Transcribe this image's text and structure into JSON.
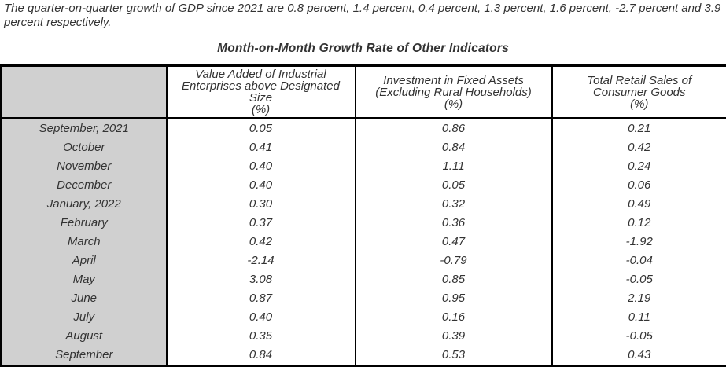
{
  "intro_text": "The quarter-on-quarter growth of GDP since 2021 are 0.8 percent, 1.4 percent, 0.4 percent, 1.3 percent, 1.6 percent, -2.7 percent and 3.9 percent respectively.",
  "table_title": "Month-on-Month Growth Rate of Other Indicators",
  "table": {
    "corner_label": "",
    "columns": [
      {
        "label": "Value Added of Industrial Enterprises above Designated Size (%)",
        "lines": [
          "Value Added of Industrial",
          "Enterprises above Designated",
          "Size",
          "(%)"
        ]
      },
      {
        "label": "Investment in Fixed Assets (Excluding Rural Households) (%)",
        "lines": [
          "Investment in Fixed  Assets",
          "(Excluding Rural Households)",
          "(%)"
        ]
      },
      {
        "label": "Total Retail Sales of Consumer Goods (%)",
        "lines": [
          "Total Retail Sales of",
          "Consumer Goods",
          "(%)"
        ]
      }
    ],
    "rows": [
      {
        "label": "September, 2021",
        "values": [
          "0.05",
          "0.86",
          "0.21"
        ]
      },
      {
        "label": "October",
        "values": [
          "0.41",
          "0.84",
          "0.42"
        ]
      },
      {
        "label": "November",
        "values": [
          "0.40",
          "1.11",
          "0.24"
        ]
      },
      {
        "label": "December",
        "values": [
          "0.40",
          "0.05",
          "0.06"
        ]
      },
      {
        "label": "January, 2022",
        "values": [
          "0.30",
          "0.32",
          "0.49"
        ]
      },
      {
        "label": "February",
        "values": [
          "0.37",
          "0.36",
          "0.12"
        ]
      },
      {
        "label": "March",
        "values": [
          "0.42",
          "0.47",
          "-1.92"
        ]
      },
      {
        "label": "April",
        "values": [
          "-2.14",
          "-0.79",
          "-0.04"
        ]
      },
      {
        "label": "May",
        "values": [
          "3.08",
          "0.85",
          "-0.05"
        ]
      },
      {
        "label": "June",
        "values": [
          "0.87",
          "0.95",
          "2.19"
        ]
      },
      {
        "label": "July",
        "values": [
          "0.40",
          "0.16",
          "0.11"
        ]
      },
      {
        "label": "August",
        "values": [
          "0.35",
          "0.39",
          "-0.05"
        ]
      },
      {
        "label": "September",
        "values": [
          "0.84",
          "0.53",
          "0.43"
        ]
      }
    ]
  },
  "colors": {
    "label_column_bg": "#d0d0d0",
    "border": "#000000",
    "text": "#333333",
    "cell_bg": "#ffffff"
  }
}
